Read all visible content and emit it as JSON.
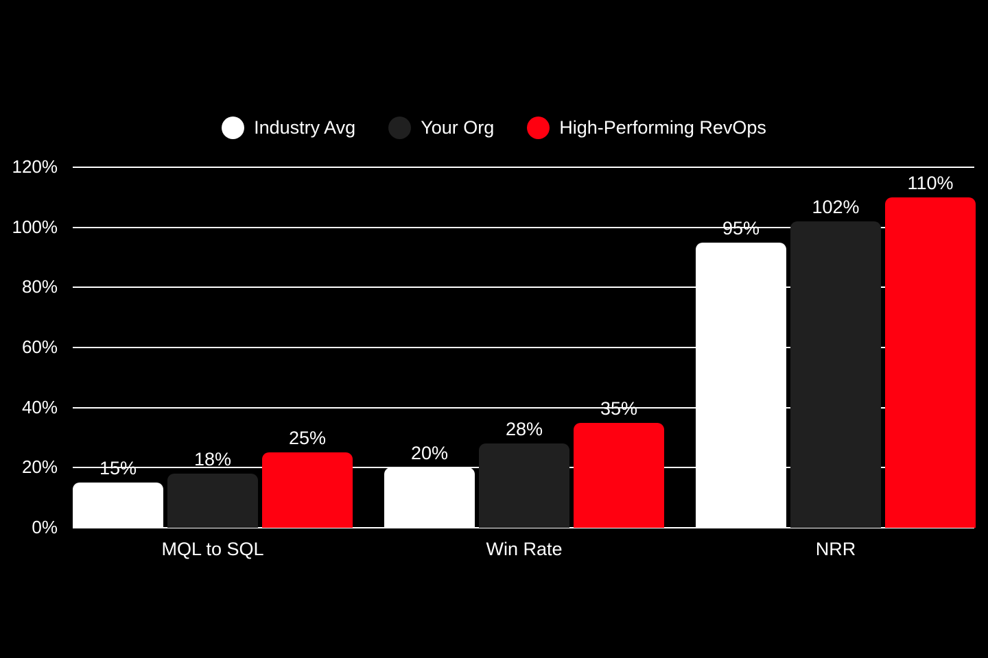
{
  "chart_data": {
    "type": "bar",
    "title": "",
    "xlabel": "",
    "ylabel": "",
    "categories": [
      "MQL to SQL",
      "Win Rate",
      "NRR"
    ],
    "series": [
      {
        "name": "Industry Avg",
        "color": "#ffffff",
        "values": [
          15,
          20,
          95
        ],
        "labels": [
          "15%",
          "20%",
          "95%"
        ]
      },
      {
        "name": "Your Org",
        "color": "#202020",
        "values": [
          18,
          28,
          102
        ],
        "labels": [
          "18%",
          "28%",
          "102%"
        ]
      },
      {
        "name": "High-Performing RevOps",
        "color": "#ff0010",
        "values": [
          25,
          35,
          110
        ],
        "labels": [
          "25%",
          "35%",
          "110%"
        ]
      }
    ],
    "ylim": [
      0,
      120
    ],
    "yticks": [
      "0%",
      "20%",
      "40%",
      "60%",
      "80%",
      "100%",
      "120%"
    ],
    "grid": true,
    "legend_position": "top"
  },
  "legend": {
    "items": [
      {
        "label": "Industry Avg",
        "color": "#ffffff"
      },
      {
        "label": "Your Org",
        "color": "#202020"
      },
      {
        "label": "High-Performing RevOps",
        "color": "#ff0010"
      }
    ]
  }
}
